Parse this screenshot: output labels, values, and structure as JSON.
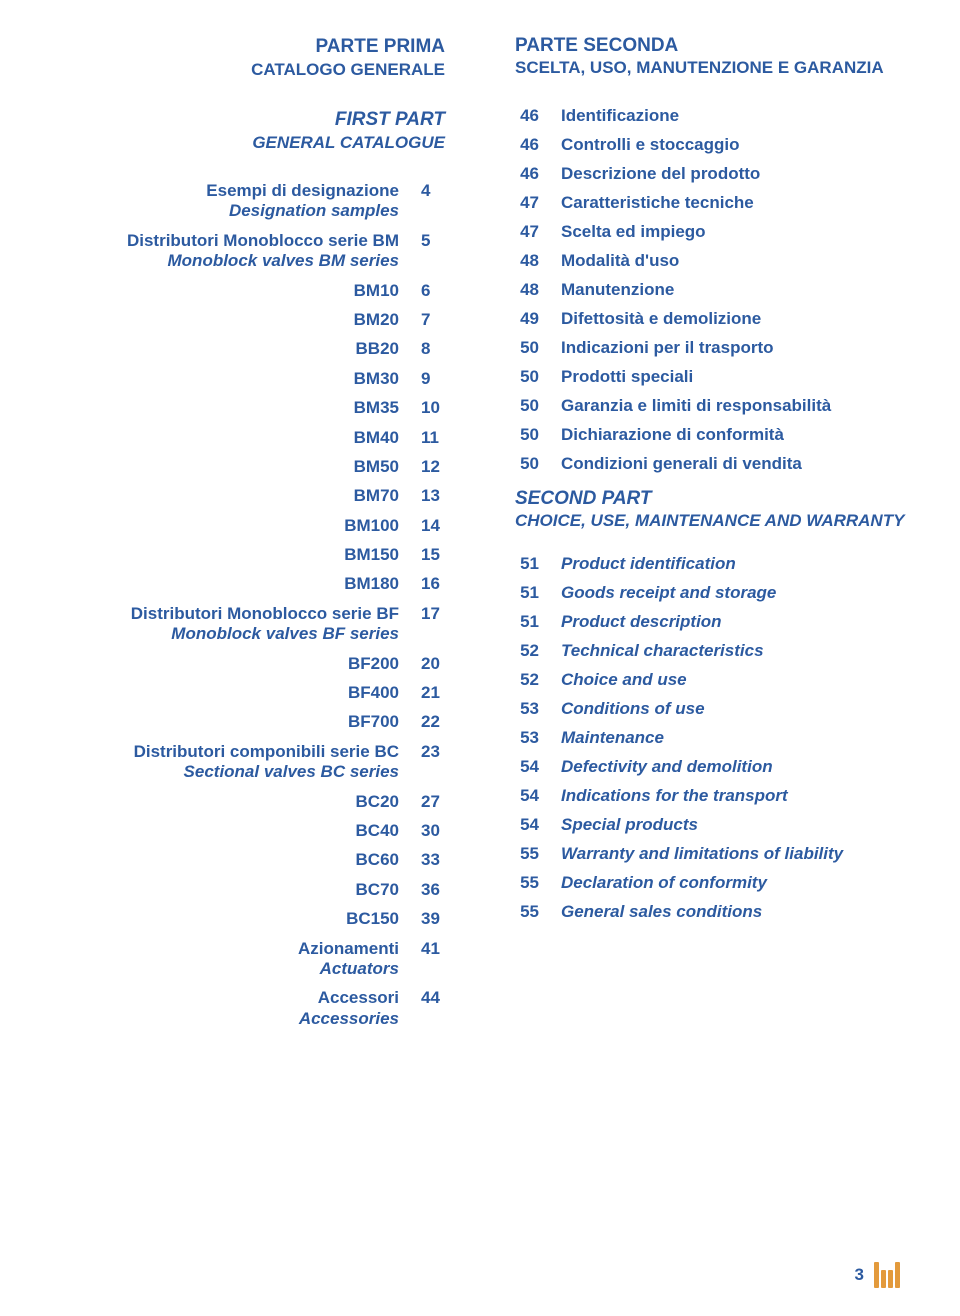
{
  "left": {
    "head1": "PARTE PRIMA",
    "head1_sub": "CATALOGO GENERALE",
    "head2": "FIRST PART",
    "head2_sub": "GENERAL CATALOGUE",
    "items": [
      {
        "label": "Esempi di designazione",
        "sub": "Designation samples",
        "page": "4"
      },
      {
        "label": "Distributori Monoblocco serie BM",
        "sub": "Monoblock valves BM series",
        "page": "5"
      },
      {
        "label": "BM10",
        "page": "6"
      },
      {
        "label": "BM20",
        "page": "7"
      },
      {
        "label": "BB20",
        "page": "8"
      },
      {
        "label": "BM30",
        "page": "9"
      },
      {
        "label": "BM35",
        "page": "10"
      },
      {
        "label": "BM40",
        "page": "11"
      },
      {
        "label": "BM50",
        "page": "12"
      },
      {
        "label": "BM70",
        "page": "13"
      },
      {
        "label": "BM100",
        "page": "14"
      },
      {
        "label": "BM150",
        "page": "15"
      },
      {
        "label": "BM180",
        "page": "16"
      },
      {
        "label": "Distributori Monoblocco serie BF",
        "sub": "Monoblock valves BF series",
        "page": "17"
      },
      {
        "label": "BF200",
        "page": "20"
      },
      {
        "label": "BF400",
        "page": "21"
      },
      {
        "label": "BF700",
        "page": "22"
      },
      {
        "label": "Distributori componibili serie BC",
        "sub": "Sectional valves BC series",
        "page": "23"
      },
      {
        "label": "BC20",
        "page": "27"
      },
      {
        "label": "BC40",
        "page": "30"
      },
      {
        "label": "BC60",
        "page": "33"
      },
      {
        "label": "BC70",
        "page": "36"
      },
      {
        "label": "BC150",
        "page": "39"
      },
      {
        "label": "Azionamenti",
        "sub": "Actuators",
        "page": "41"
      },
      {
        "label": "Accessori",
        "sub": "Accessories",
        "page": "44"
      }
    ]
  },
  "right": {
    "head1": "PARTE SECONDA",
    "head1_sub": "SCELTA, USO, MANUTENZIONE E GARANZIA",
    "items_it": [
      {
        "page": "46",
        "label": "Identificazione"
      },
      {
        "page": "46",
        "label": "Controlli e stoccaggio"
      },
      {
        "page": "46",
        "label": "Descrizione del prodotto"
      },
      {
        "page": "47",
        "label": "Caratteristiche tecniche"
      },
      {
        "page": "47",
        "label": "Scelta ed impiego"
      },
      {
        "page": "48",
        "label": "Modalità d'uso"
      },
      {
        "page": "48",
        "label": "Manutenzione"
      },
      {
        "page": "49",
        "label": "Difettosità e demolizione"
      },
      {
        "page": "50",
        "label": "Indicazioni per il trasporto"
      },
      {
        "page": "50",
        "label": "Prodotti speciali"
      },
      {
        "page": "50",
        "label": "Garanzia e limiti di responsabilità"
      },
      {
        "page": "50",
        "label": "Dichiarazione di conformità"
      },
      {
        "page": "50",
        "label": "Condizioni generali di vendita"
      }
    ],
    "head2": "SECOND PART",
    "head2_sub": "CHOICE, USE, MAINTENANCE AND WARRANTY",
    "items_en": [
      {
        "page": "51",
        "label": "Product identification"
      },
      {
        "page": "51",
        "label": "Goods receipt and storage"
      },
      {
        "page": "51",
        "label": "Product description"
      },
      {
        "page": "52",
        "label": "Technical characteristics"
      },
      {
        "page": "52",
        "label": "Choice and use"
      },
      {
        "page": "53",
        "label": "Conditions of use"
      },
      {
        "page": "53",
        "label": "Maintenance"
      },
      {
        "page": "54",
        "label": "Defectivity and demolition"
      },
      {
        "page": "54",
        "label": "Indications for the transport"
      },
      {
        "page": "54",
        "label": "Special products"
      },
      {
        "page": "55",
        "label": "Warranty and limitations of liability"
      },
      {
        "page": "55",
        "label": "Declaration of conformity"
      },
      {
        "page": "55",
        "label": "General sales conditions"
      }
    ]
  },
  "footer": {
    "page_number": "3"
  },
  "colors": {
    "primary": "#2c5aa0",
    "accent": "#e39a3c",
    "background": "#ffffff"
  }
}
